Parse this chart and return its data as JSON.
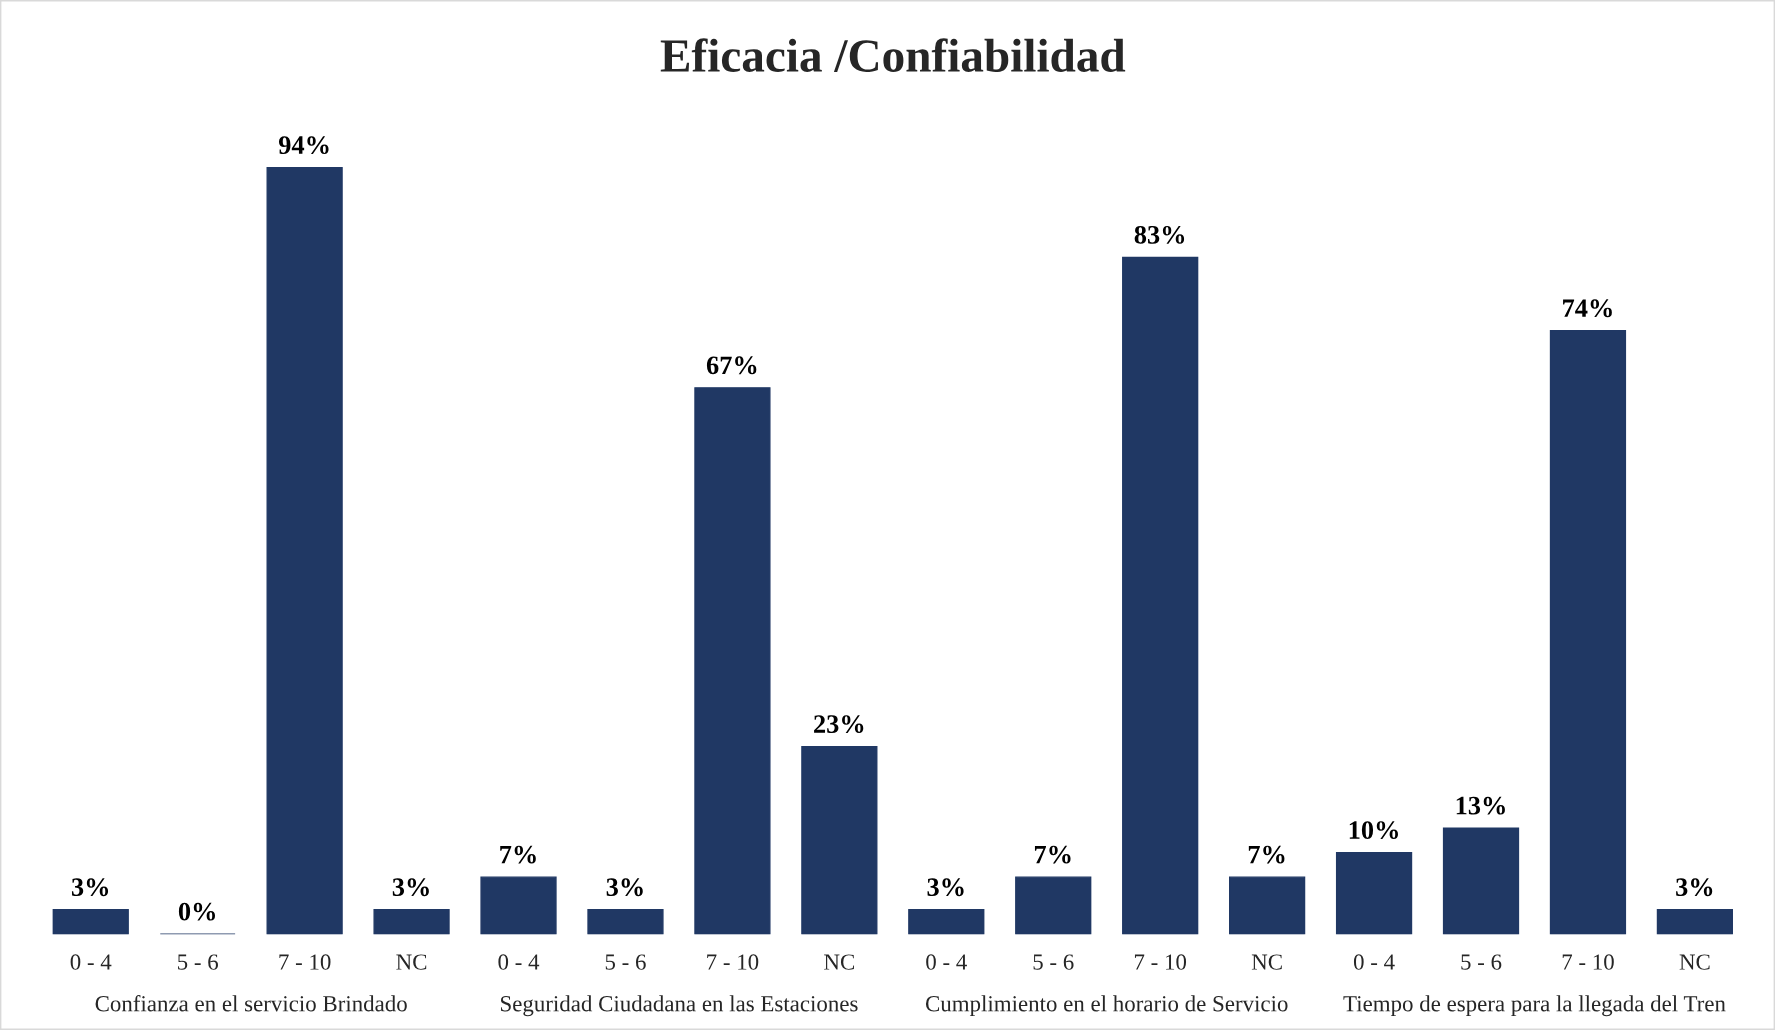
{
  "chart_data": {
    "type": "bar",
    "title": "Eficacia /Confiabilidad",
    "categories": [
      "0 - 4",
      "5 - 6",
      "7 - 10",
      "NC",
      "0 - 4",
      "5 - 6",
      "7 - 10",
      "NC",
      "0 - 4",
      "5 - 6",
      "7 - 10",
      "NC",
      "0 - 4",
      "5 - 6",
      "7 - 10",
      "NC"
    ],
    "values": [
      3,
      0,
      94,
      3,
      7,
      3,
      67,
      23,
      3,
      7,
      83,
      7,
      10,
      13,
      74,
      3
    ],
    "value_labels": [
      "3%",
      "0%",
      "94%",
      "3%",
      "7%",
      "3%",
      "67%",
      "23%",
      "3%",
      "7%",
      "83%",
      "7%",
      "10%",
      "13%",
      "74%",
      "3%"
    ],
    "color": "#203864",
    "annotations": [
      "Confianza en el servicio Brindado",
      "Seguridad Ciudadana en las Estaciones",
      "Cumplimiento en el horario de Servicio",
      "Tiempo de espera para la llegada del Tren"
    ],
    "grid": false,
    "legend": false
  }
}
